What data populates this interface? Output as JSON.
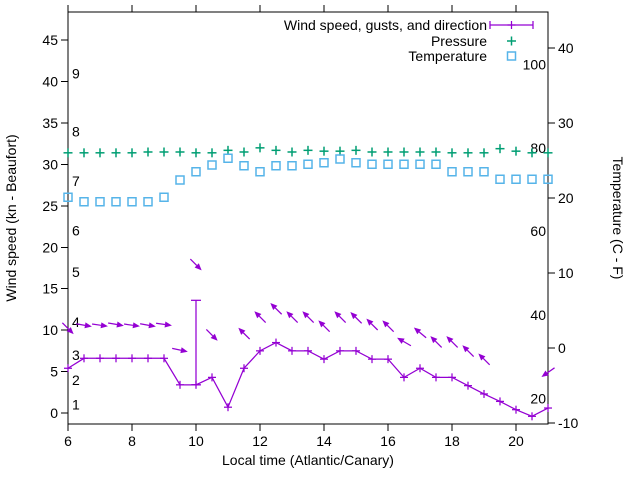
{
  "chart_data": {
    "type": "line",
    "title": "",
    "xlabel": "Local time (Atlantic/Canary)",
    "ylabel_left": "Wind speed (kn - Beaufort)",
    "ylabel_right": "Temperature (C - F)",
    "x_range": [
      6,
      21
    ],
    "x_ticks": [
      6,
      8,
      10,
      12,
      14,
      16,
      18,
      20
    ],
    "left_axis": {
      "unit": "kn",
      "ticks": [
        0,
        5,
        10,
        15,
        20,
        25,
        30,
        35,
        40,
        45
      ]
    },
    "right_axis": {
      "unit": "C",
      "ticks": [
        -10,
        0,
        10,
        20,
        30,
        40
      ]
    },
    "beaufort_scale": [
      {
        "label": "1",
        "kn": 1
      },
      {
        "label": "2",
        "kn": 4
      },
      {
        "label": "3",
        "kn": 7
      },
      {
        "label": "4",
        "kn": 11
      },
      {
        "label": "5",
        "kn": 17
      },
      {
        "label": "6",
        "kn": 22
      },
      {
        "label": "7",
        "kn": 28
      },
      {
        "label": "8",
        "kn": 34
      },
      {
        "label": "9",
        "kn": 41
      }
    ],
    "fahrenheit_scale": [
      {
        "label": "100",
        "c": 37.8
      },
      {
        "label": "80",
        "c": 26.7
      },
      {
        "label": "60",
        "c": 15.6
      },
      {
        "label": "40",
        "c": 4.4
      },
      {
        "label": "20",
        "c": -6.7
      }
    ],
    "x": [
      6,
      6.5,
      7,
      7.5,
      8,
      8.5,
      9,
      9.5,
      10,
      10.5,
      11,
      11.5,
      12,
      12.5,
      13,
      13.5,
      14,
      14.5,
      15,
      15.5,
      16,
      16.5,
      17,
      17.5,
      18,
      18.5,
      19,
      19.5,
      20,
      20.5,
      21
    ],
    "series": [
      {
        "name": "Wind speed, gusts, and direction",
        "color": "#9400D3",
        "marker": "plus",
        "axis": "left",
        "values": [
          5.4,
          6.6,
          6.6,
          6.6,
          6.6,
          6.6,
          6.6,
          3.4,
          3.4,
          4.3,
          0.7,
          5.4,
          7.5,
          8.5,
          7.5,
          7.5,
          6.5,
          7.5,
          7.5,
          6.5,
          6.5,
          4.3,
          5.4,
          4.3,
          4.3,
          3.3,
          2.3,
          1.4,
          0.4,
          -0.4,
          0.6
        ]
      },
      {
        "name": "Pressure",
        "color": "#009E73",
        "marker": "plus",
        "axis": "left-display-units",
        "values": [
          31.4,
          31.4,
          31.4,
          31.4,
          31.4,
          31.5,
          31.5,
          31.5,
          31.4,
          31.4,
          31.7,
          31.5,
          32.0,
          31.7,
          31.5,
          31.7,
          31.6,
          31.6,
          31.7,
          31.5,
          31.5,
          31.5,
          31.5,
          31.5,
          31.4,
          31.4,
          31.4,
          31.9,
          31.6,
          31.4,
          31.4
        ]
      },
      {
        "name": "Temperature",
        "color": "#56B4E9",
        "marker": "square",
        "axis": "right",
        "values": [
          20.1,
          19.5,
          19.5,
          19.5,
          19.5,
          19.5,
          20.1,
          22.4,
          23.5,
          24.4,
          25.3,
          24.3,
          23.5,
          24.3,
          24.3,
          24.5,
          24.7,
          25.2,
          24.7,
          24.5,
          24.5,
          24.5,
          24.5,
          24.5,
          23.5,
          23.5,
          23.5,
          22.5,
          22.5,
          22.5,
          22.5
        ]
      }
    ],
    "gust_vectors": [
      {
        "t": 6.0,
        "kn": 10.2,
        "dir_deg": -45
      },
      {
        "t": 6.5,
        "kn": 10.6,
        "dir_deg": -10
      },
      {
        "t": 7.0,
        "kn": 10.6,
        "dir_deg": -8
      },
      {
        "t": 7.5,
        "kn": 10.7,
        "dir_deg": -10
      },
      {
        "t": 8.0,
        "kn": 10.6,
        "dir_deg": -8
      },
      {
        "t": 8.5,
        "kn": 10.6,
        "dir_deg": -10
      },
      {
        "t": 9.0,
        "kn": 10.7,
        "dir_deg": -8
      },
      {
        "t": 9.5,
        "kn": 7.6,
        "dir_deg": -12
      },
      {
        "t": 10.0,
        "kn": 17.9,
        "dir_deg": -45
      },
      {
        "t": 10.5,
        "kn": 9.4,
        "dir_deg": -45
      },
      {
        "t": 11.5,
        "kn": 9.6,
        "dir_deg": 135
      },
      {
        "t": 12.0,
        "kn": 11.6,
        "dir_deg": 135
      },
      {
        "t": 12.5,
        "kn": 12.6,
        "dir_deg": 135
      },
      {
        "t": 13.0,
        "kn": 11.6,
        "dir_deg": 135
      },
      {
        "t": 13.5,
        "kn": 11.6,
        "dir_deg": 135
      },
      {
        "t": 14.0,
        "kn": 10.5,
        "dir_deg": 135
      },
      {
        "t": 14.5,
        "kn": 11.6,
        "dir_deg": 135
      },
      {
        "t": 15.0,
        "kn": 11.5,
        "dir_deg": 135
      },
      {
        "t": 15.5,
        "kn": 10.7,
        "dir_deg": 135
      },
      {
        "t": 16.0,
        "kn": 10.5,
        "dir_deg": 135
      },
      {
        "t": 16.5,
        "kn": 8.6,
        "dir_deg": 150
      },
      {
        "t": 17.0,
        "kn": 9.7,
        "dir_deg": 140
      },
      {
        "t": 17.5,
        "kn": 8.6,
        "dir_deg": 135
      },
      {
        "t": 18.0,
        "kn": 8.6,
        "dir_deg": 135
      },
      {
        "t": 18.5,
        "kn": 7.5,
        "dir_deg": 135
      },
      {
        "t": 19.0,
        "kn": 6.5,
        "dir_deg": 135
      },
      {
        "t": 21.0,
        "kn": 4.9,
        "dir_deg": 215
      }
    ],
    "gust_errorbar": {
      "t": 10,
      "lo": 3.4,
      "hi": 13.6
    },
    "legend_position": "top-right-inside",
    "grid": "off"
  },
  "colors": {
    "wind": "#9400D3",
    "pressure": "#009E73",
    "temperature": "#56B4E9",
    "axis": "#000000",
    "background": "#ffffff"
  }
}
